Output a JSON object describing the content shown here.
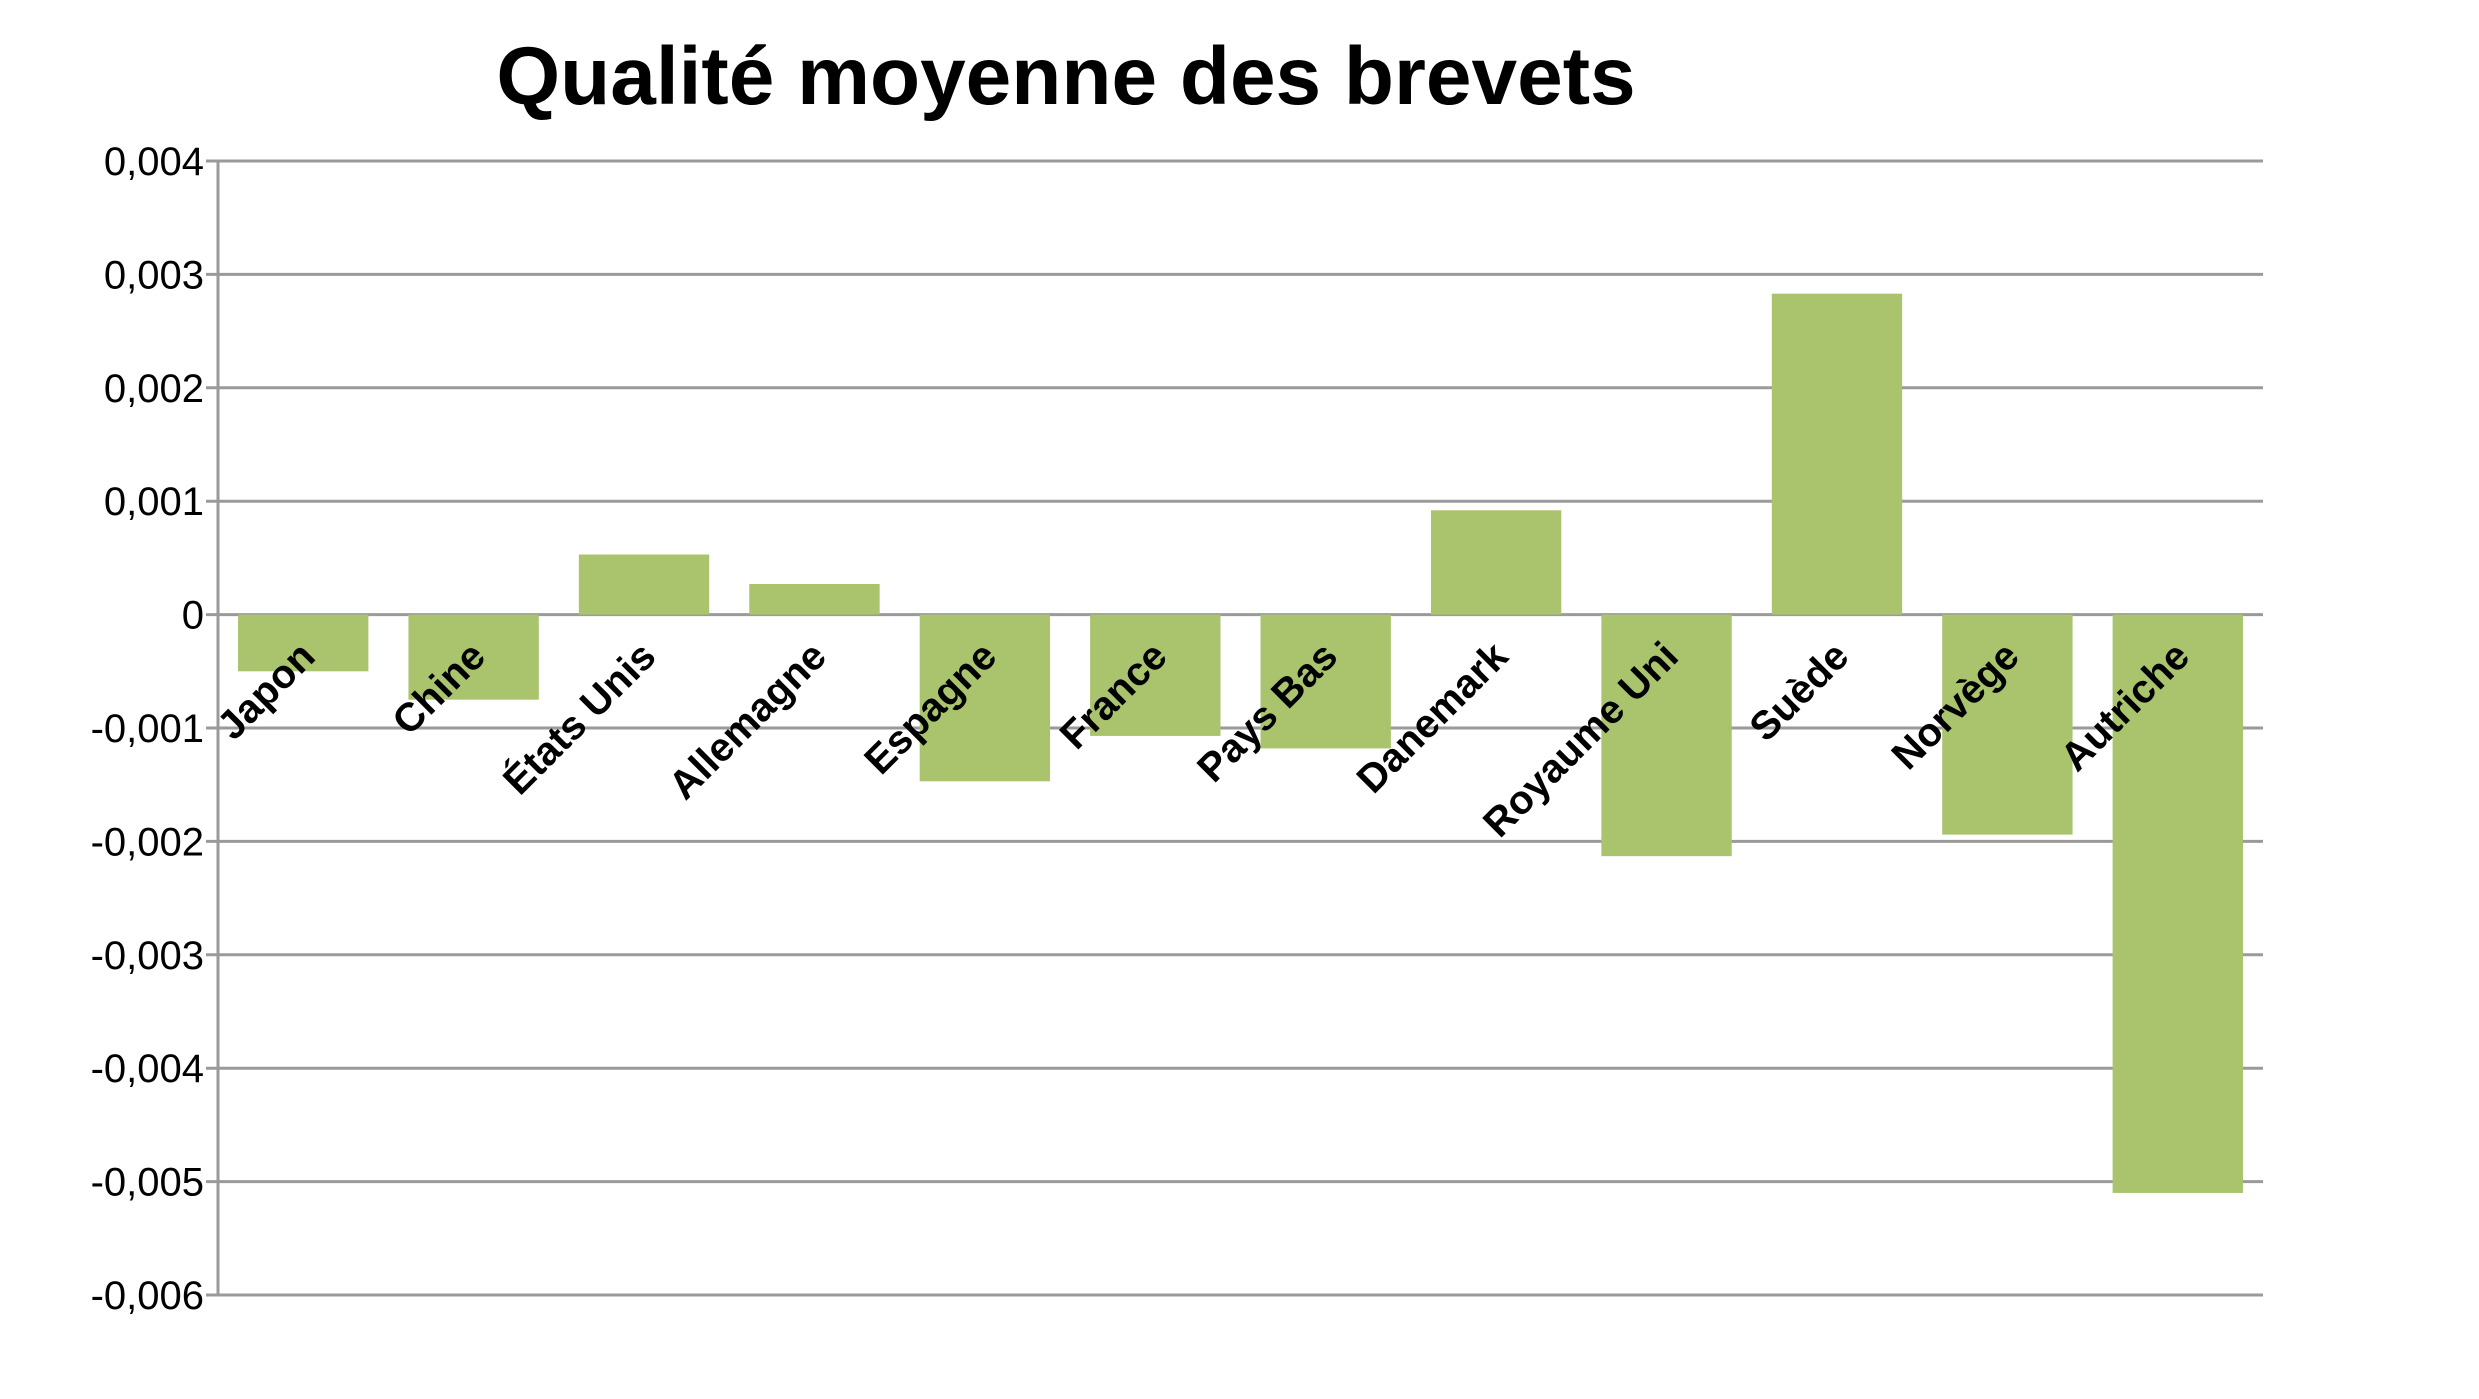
{
  "chart_data": {
    "type": "bar",
    "title": "Qualité moyenne des brevets",
    "xlabel": "",
    "ylabel": "",
    "categories": [
      "Japon",
      "Chine",
      "États Unis",
      "Allemagne",
      "Espagne",
      "France",
      "Pays Bas",
      "Danemark",
      "Royaume Uni",
      "Suède",
      "Norvège",
      "Autriche"
    ],
    "values": [
      -0.0005,
      -0.00075,
      0.00053,
      0.00027,
      -0.00147,
      -0.00107,
      -0.00118,
      0.00092,
      -0.00213,
      0.00283,
      -0.00194,
      -0.0051
    ],
    "ylim": [
      -0.006,
      0.004
    ],
    "yticks": [
      0.004,
      0.003,
      0.002,
      0.001,
      0,
      -0.001,
      -0.002,
      -0.003,
      -0.004,
      -0.005,
      -0.006
    ],
    "ytick_labels": [
      "0,004",
      "0,003",
      "0,002",
      "0,001",
      "0",
      "-0,001",
      "-0,002",
      "-0,003",
      "-0,004",
      "-0,005",
      "-0,006"
    ],
    "grid": true,
    "legend": "none",
    "bar_color": "#a9c46c",
    "grid_color": "#9a9a9a"
  }
}
